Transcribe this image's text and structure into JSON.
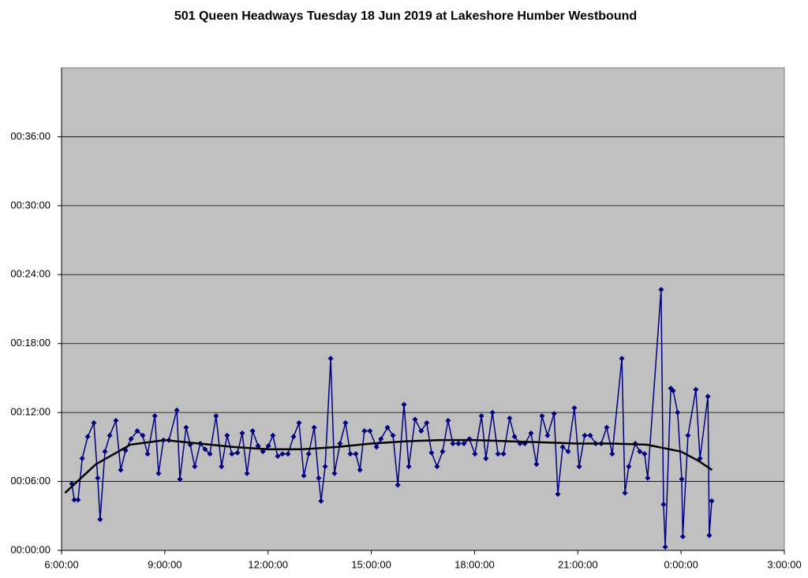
{
  "chart_data": {
    "type": "line",
    "title": "501 Queen Headways Tuesday 18 Jun 2019 at Lakeshore Humber Westbound",
    "xlim": [
      6,
      27
    ],
    "xticks": [
      {
        "value": 6,
        "label": "6:00:00"
      },
      {
        "value": 9,
        "label": "9:00:00"
      },
      {
        "value": 12,
        "label": "12:00:00"
      },
      {
        "value": 15,
        "label": "15:00:00"
      },
      {
        "value": 18,
        "label": "18:00:00"
      },
      {
        "value": 21,
        "label": "21:00:00"
      },
      {
        "value": 24,
        "label": "0:00:00"
      },
      {
        "value": 27,
        "label": "3:00:00"
      }
    ],
    "ylim": [
      0,
      42
    ],
    "yticks": [
      {
        "value": 0,
        "label": "00:00:00"
      },
      {
        "value": 6,
        "label": "00:06:00"
      },
      {
        "value": 12,
        "label": "00:12:00"
      },
      {
        "value": 18,
        "label": "00:18:00"
      },
      {
        "value": 24,
        "label": "00:24:00"
      },
      {
        "value": 30,
        "label": "00:30:00"
      },
      {
        "value": 36,
        "label": "00:36:00"
      }
    ],
    "grid": true,
    "series": [
      {
        "color": "#000080",
        "markers": true,
        "x": [
          6.3,
          6.37,
          6.48,
          6.6,
          6.76,
          6.94,
          7.05,
          7.12,
          7.26,
          7.4,
          7.58,
          7.72,
          7.86,
          8.02,
          8.2,
          8.36,
          8.5,
          8.71,
          8.82,
          8.96,
          9.12,
          9.35,
          9.44,
          9.62,
          9.74,
          9.87,
          10.03,
          10.17,
          10.31,
          10.49,
          10.65,
          10.81,
          10.95,
          11.11,
          11.25,
          11.39,
          11.55,
          11.71,
          11.85,
          12.01,
          12.14,
          12.28,
          12.42,
          12.58,
          12.74,
          12.9,
          13.04,
          13.18,
          13.34,
          13.47,
          13.54,
          13.66,
          13.82,
          13.93,
          14.09,
          14.25,
          14.39,
          14.55,
          14.67,
          14.8,
          14.96,
          15.15,
          15.28,
          15.47,
          15.63,
          15.77,
          15.95,
          16.09,
          16.27,
          16.45,
          16.61,
          16.75,
          16.91,
          17.07,
          17.23,
          17.37,
          17.53,
          17.69,
          17.85,
          18.01,
          18.2,
          18.33,
          18.52,
          18.68,
          18.84,
          19.02,
          19.16,
          19.32,
          19.46,
          19.64,
          19.8,
          19.96,
          20.12,
          20.31,
          20.42,
          20.56,
          20.72,
          20.9,
          21.04,
          21.2,
          21.36,
          21.52,
          21.68,
          21.84,
          22.0,
          22.28,
          22.37,
          22.48,
          22.67,
          22.8,
          22.94,
          23.03,
          23.42,
          23.49,
          23.54,
          23.7,
          23.77,
          23.9,
          24.02,
          24.05,
          24.2,
          24.43,
          24.55,
          24.78,
          24.82,
          24.89
        ],
        "values": [
          5.8,
          4.4,
          4.4,
          8.0,
          9.9,
          11.1,
          6.3,
          2.7,
          8.6,
          10.0,
          11.3,
          7.0,
          8.7,
          9.7,
          10.4,
          10.0,
          8.4,
          11.7,
          6.7,
          9.6,
          9.6,
          12.2,
          6.2,
          10.7,
          9.2,
          7.3,
          9.3,
          8.8,
          8.4,
          11.7,
          7.3,
          10.0,
          8.4,
          8.5,
          10.2,
          6.7,
          10.4,
          9.1,
          8.6,
          9.1,
          10.0,
          8.2,
          8.4,
          8.4,
          9.9,
          11.1,
          6.5,
          8.4,
          10.7,
          6.3,
          4.3,
          7.3,
          16.7,
          6.7,
          9.3,
          11.1,
          8.4,
          8.4,
          7.0,
          10.4,
          10.4,
          9.0,
          9.7,
          10.7,
          10.0,
          5.7,
          12.7,
          7.3,
          11.4,
          10.4,
          11.1,
          8.5,
          7.3,
          8.6,
          11.3,
          9.3,
          9.3,
          9.3,
          9.7,
          8.4,
          11.7,
          8.0,
          12.0,
          8.4,
          8.4,
          11.5,
          9.9,
          9.3,
          9.3,
          10.2,
          7.5,
          11.7,
          10.0,
          11.9,
          4.9,
          9.0,
          8.6,
          12.4,
          7.3,
          10.0,
          10.0,
          9.3,
          9.3,
          10.7,
          8.4,
          16.7,
          5.0,
          7.3,
          9.3,
          8.6,
          8.4,
          6.3,
          22.7,
          4.0,
          0.3,
          14.1,
          13.9,
          12.0,
          6.2,
          1.2,
          10.0,
          14.0,
          8.0,
          13.4,
          1.3,
          4.3
        ]
      },
      {
        "color": "#000000",
        "markers": false,
        "x": [
          6.1,
          7,
          8,
          9,
          10,
          11,
          12,
          13,
          14,
          15,
          16,
          17,
          18,
          19,
          20,
          21,
          22,
          23,
          24,
          24.5,
          24.9
        ],
        "values": [
          5.0,
          7.5,
          9.2,
          9.6,
          9.3,
          9.0,
          8.8,
          8.8,
          9.0,
          9.3,
          9.5,
          9.6,
          9.6,
          9.5,
          9.4,
          9.3,
          9.3,
          9.2,
          8.6,
          7.8,
          7.0
        ]
      }
    ]
  }
}
